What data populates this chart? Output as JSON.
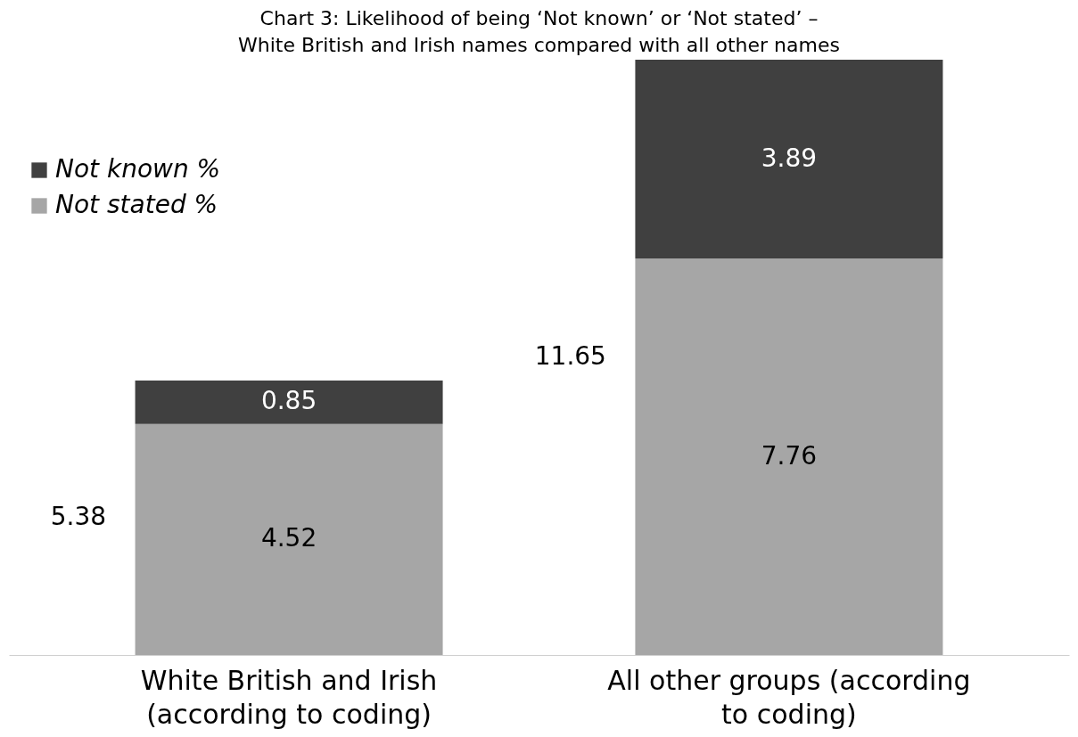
{
  "chart_data": {
    "type": "bar",
    "title": "Chart 3: Likelihood of being ‘Not known’ or ‘Not stated’ – White British and Irish names compared with all other names",
    "categories": [
      "White British and Irish (according to coding)",
      "All other groups (according to coding)"
    ],
    "stacked": true,
    "series": [
      {
        "name": "Not stated %",
        "color": "#a6a6a6",
        "values": [
          4.52,
          7.76
        ]
      },
      {
        "name": "Not known %",
        "color": "#404040",
        "values": [
          0.85,
          3.89
        ]
      }
    ],
    "data_labels": true,
    "totals": [
      "5.38",
      "11.65"
    ],
    "legend": "top left",
    "grid": false
  }
}
